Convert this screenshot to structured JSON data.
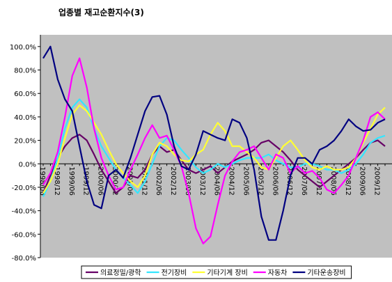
{
  "chart_data": {
    "type": "line",
    "title": "업종별 재고순환지수(3)",
    "categories": [
      "1998/06",
      null,
      "1998/12",
      null,
      "1999/06",
      null,
      "1999/12",
      null,
      "2000/06",
      null,
      "2000/12",
      null,
      "2001/06",
      null,
      "2001/12",
      null,
      "2002/06",
      null,
      "2002/12",
      null,
      "2003/06",
      null,
      "2003/12",
      null,
      "2004/06",
      null,
      "2004/12",
      null,
      "2005/06",
      null,
      "2005/12",
      null,
      "2006/06",
      null,
      "2006/12",
      null,
      "2007/06",
      null,
      "2007/12",
      null,
      "2008/06",
      null,
      "2008/12",
      null,
      "2009/06",
      null,
      "2009/12",
      null
    ],
    "series": [
      {
        "name": "의료정밀/광학",
        "color": "#660066",
        "values": [
          -25,
          -10,
          5,
          15,
          22,
          25,
          20,
          8,
          -5,
          -15,
          -25,
          -20,
          -10,
          -12,
          -5,
          8,
          15,
          10,
          12,
          3,
          -5,
          -8,
          -5,
          -2,
          -8,
          -3,
          2,
          5,
          8,
          12,
          18,
          20,
          15,
          10,
          3,
          -5,
          -10,
          -15,
          -20,
          -15,
          -10,
          -5,
          0,
          5,
          12,
          18,
          20,
          15
        ]
      },
      {
        "name": "전기장비",
        "color": "#33e6ff",
        "values": [
          -28,
          -15,
          5,
          30,
          48,
          55,
          48,
          30,
          15,
          5,
          -5,
          -12,
          -18,
          -25,
          -15,
          0,
          15,
          22,
          20,
          12,
          5,
          -3,
          -8,
          -5,
          0,
          -3,
          0,
          3,
          5,
          5,
          5,
          8,
          3,
          0,
          -3,
          -3,
          0,
          0,
          -2,
          -5,
          -5,
          -8,
          -5,
          0,
          8,
          18,
          22,
          24
        ]
      },
      {
        "name": "기타기계 장비",
        "color": "#ffff33",
        "values": [
          -25,
          -15,
          0,
          22,
          42,
          50,
          45,
          35,
          25,
          12,
          0,
          -8,
          -15,
          -20,
          -10,
          8,
          18,
          15,
          8,
          3,
          2,
          8,
          12,
          25,
          35,
          28,
          15,
          15,
          10,
          5,
          -3,
          -5,
          5,
          15,
          20,
          12,
          3,
          -3,
          -5,
          -2,
          -5,
          -5,
          -3,
          5,
          18,
          30,
          42,
          48
        ]
      },
      {
        "name": "자동차",
        "color": "#ff00ff",
        "values": [
          -18,
          -8,
          10,
          40,
          75,
          90,
          65,
          30,
          5,
          -10,
          -22,
          -20,
          -5,
          8,
          22,
          33,
          22,
          24,
          12,
          -2,
          -25,
          -55,
          -68,
          -62,
          -35,
          -10,
          2,
          10,
          12,
          15,
          5,
          -5,
          8,
          5,
          -8,
          -2,
          -8,
          -6,
          -12,
          -22,
          -25,
          -18,
          -10,
          5,
          20,
          40,
          44,
          38
        ]
      },
      {
        "name": "기타운송장비",
        "color": "#000080",
        "values": [
          90,
          100,
          72,
          55,
          45,
          15,
          -15,
          -35,
          -38,
          -10,
          -5,
          -12,
          5,
          25,
          45,
          57,
          58,
          42,
          15,
          -2,
          -5,
          8,
          28,
          25,
          22,
          20,
          38,
          35,
          22,
          -5,
          -45,
          -65,
          -65,
          -40,
          -10,
          5,
          5,
          0,
          12,
          15,
          20,
          28,
          38,
          32,
          28,
          29,
          35,
          38
        ]
      }
    ],
    "ylim": [
      -80,
      110
    ],
    "yticks": [
      {
        "value": -80,
        "label": "-80.0%"
      },
      {
        "value": -60,
        "label": "-60.0%"
      },
      {
        "value": -40,
        "label": "-40.0%"
      },
      {
        "value": -20,
        "label": "-20.0%"
      },
      {
        "value": 0,
        "label": "0.0%"
      },
      {
        "value": 20,
        "label": "20.0%"
      },
      {
        "value": 40,
        "label": "40.0%"
      },
      {
        "value": 60,
        "label": "60.0%"
      },
      {
        "value": 80,
        "label": "80.0%"
      },
      {
        "value": 100,
        "label": "100.0%"
      }
    ],
    "grid": false
  }
}
